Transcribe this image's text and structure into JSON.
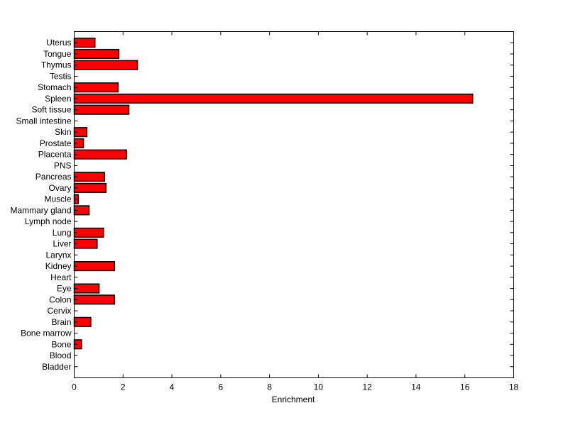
{
  "chart_data": {
    "type": "bar",
    "orientation": "horizontal",
    "title": "",
    "xlabel": "Enrichment",
    "ylabel": "",
    "xlim": [
      0,
      18
    ],
    "xticks": [
      0,
      2,
      4,
      6,
      8,
      10,
      12,
      14,
      16,
      18
    ],
    "grid": false,
    "bar_color": "#ff0000",
    "edge_color": "#000000",
    "categories": [
      "Bladder",
      "Blood",
      "Bone",
      "Bone marrow",
      "Brain",
      "Cervix",
      "Colon",
      "Eye",
      "Heart",
      "Kidney",
      "Larynx",
      "Liver",
      "Lung",
      "Lymph node",
      "Mammary gland",
      "Muscle",
      "Ovary",
      "Pancreas",
      "PNS",
      "Placenta",
      "Prostate",
      "Skin",
      "Small intestine",
      "Soft tissue",
      "Spleen",
      "Stomach",
      "Testis",
      "Thymus",
      "Tongue",
      "Uterus"
    ],
    "values": [
      0,
      0,
      0.3,
      0,
      0.68,
      0,
      1.65,
      1.02,
      0,
      1.65,
      0,
      0.94,
      1.2,
      0,
      0.61,
      0.17,
      1.3,
      1.24,
      0,
      2.14,
      0.38,
      0.52,
      0,
      2.24,
      16.32,
      1.8,
      0,
      2.59,
      1.83,
      0.85
    ]
  }
}
